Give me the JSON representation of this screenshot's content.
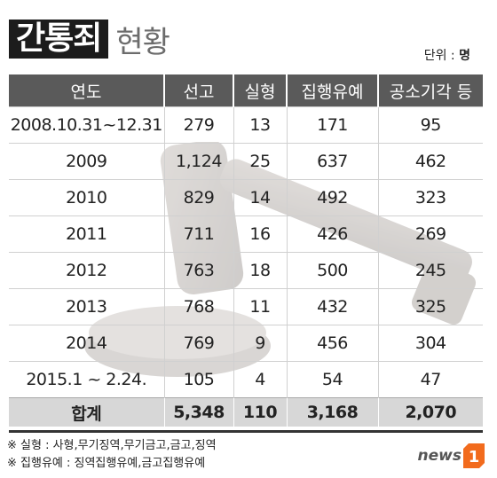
{
  "title": {
    "main": "간통죄",
    "sub": "현황"
  },
  "unit_label": "단위 :",
  "unit_value": "명",
  "table": {
    "headers": [
      "연도",
      "선고",
      "실형",
      "집행유예",
      "공소기각 등"
    ],
    "rows": [
      [
        "2008.10.31~12.31",
        "279",
        "13",
        "171",
        "95"
      ],
      [
        "2009",
        "1,124",
        "25",
        "637",
        "462"
      ],
      [
        "2010",
        "829",
        "14",
        "492",
        "323"
      ],
      [
        "2011",
        "711",
        "16",
        "426",
        "269"
      ],
      [
        "2012",
        "763",
        "18",
        "500",
        "245"
      ],
      [
        "2013",
        "768",
        "11",
        "432",
        "325"
      ],
      [
        "2014",
        "769",
        "9",
        "456",
        "304"
      ],
      [
        "2015.1 ~ 2.24.",
        "105",
        "4",
        "54",
        "47"
      ]
    ],
    "total": [
      "합계",
      "5,348",
      "110",
      "3,168",
      "2,070"
    ]
  },
  "notes": [
    "※ 실형 : 사형,무기징역,무기금고,금고,징역",
    "※ 집행유예 : 징역집행유예,금고집행유예"
  ],
  "logo": {
    "text": "news",
    "mark": "1"
  },
  "colors": {
    "header_bg": "#5a5a5a",
    "title_bg": "#1c1c1c",
    "total_bg": "#d7d7d7",
    "logo_orange": "#f26b1d"
  }
}
